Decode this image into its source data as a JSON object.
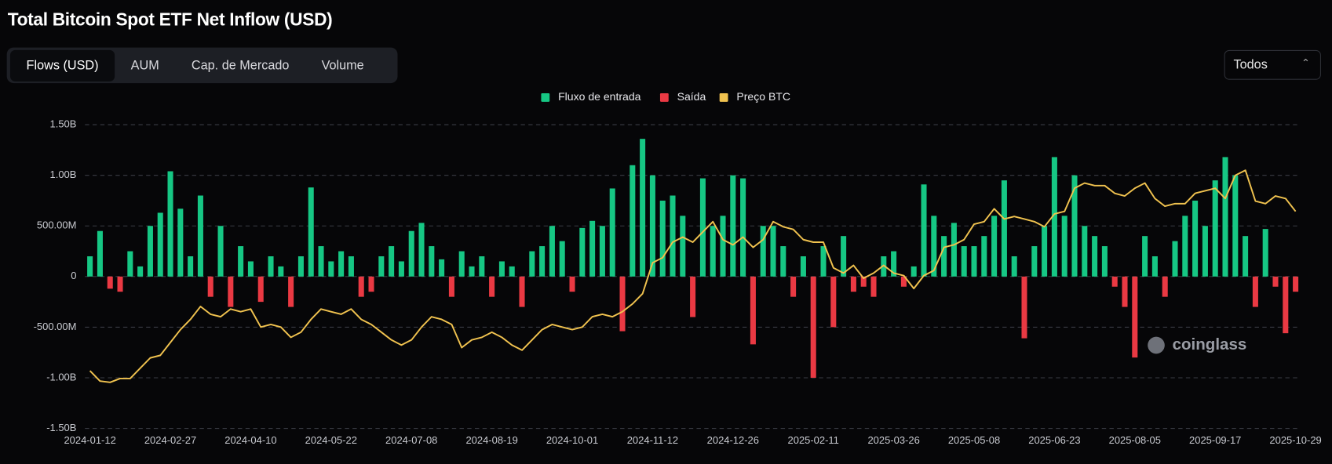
{
  "header": {
    "title": "Total Bitcoin Spot ETF Net Inflow (USD)"
  },
  "tabs": [
    "Flows (USD)",
    "AUM",
    "Cap. de Mercado",
    "Volume"
  ],
  "select": "Todos",
  "watermark": "coinglass",
  "chart_data": {
    "type": "bar",
    "grid": true,
    "legend": "top",
    "categories": [
      "2024-01-12",
      null,
      null,
      null,
      null,
      null,
      null,
      null,
      "2024-02-27",
      null,
      null,
      null,
      null,
      null,
      null,
      null,
      "2024-04-10",
      null,
      null,
      null,
      null,
      null,
      null,
      null,
      "2024-05-22",
      null,
      null,
      null,
      null,
      null,
      null,
      null,
      "2024-07-08",
      null,
      null,
      null,
      null,
      null,
      null,
      null,
      "2024-08-19",
      null,
      null,
      null,
      null,
      null,
      null,
      null,
      "2024-10-01",
      null,
      null,
      null,
      null,
      null,
      null,
      null,
      "2024-11-12",
      null,
      null,
      null,
      null,
      null,
      null,
      null,
      "2024-12-26",
      null,
      null,
      null,
      null,
      null,
      null,
      null,
      "2025-02-11",
      null,
      null,
      null,
      null,
      null,
      null,
      null,
      "2025-03-26",
      null,
      null,
      null,
      null,
      null,
      null,
      null,
      "2025-05-08",
      null,
      null,
      null,
      null,
      null,
      null,
      null,
      "2025-06-23",
      null,
      null,
      null,
      null,
      null,
      null,
      null,
      "2025-08-05",
      null,
      null,
      null,
      null,
      null,
      null,
      null,
      "2025-09-17",
      null,
      null,
      null,
      null,
      null,
      null,
      null,
      "2025-10-29"
    ],
    "ylim": [
      -1500000000.0,
      1500000000.0
    ],
    "yticks": [
      {
        "value": 1500000000.0,
        "label": "1.50B"
      },
      {
        "value": 1000000000.0,
        "label": "1.00B"
      },
      {
        "value": 500000000.0,
        "label": "500.00M"
      },
      0,
      {
        "value": -500000000.0,
        "label": "-500.00M"
      },
      {
        "value": -1000000000.0,
        "label": "-1.00B"
      },
      {
        "value": -1500000000.0,
        "label": "-1.50B"
      }
    ],
    "y2lim": [
      23600,
      141700
    ],
    "series": [
      {
        "name": "Fluxo de entrada",
        "color": "#16c784",
        "values": [
          200000000.0,
          450000000.0,
          null,
          null,
          250000000.0,
          100000000.0,
          500000000.0,
          630000000.0,
          1040000000.0,
          670000000.0,
          200000000.0,
          800000000.0,
          null,
          500000000.0,
          null,
          300000000.0,
          150000000.0,
          null,
          200000000.0,
          100000000.0,
          null,
          200000000.0,
          880000000.0,
          300000000.0,
          150000000.0,
          250000000.0,
          200000000.0,
          null,
          null,
          200000000.0,
          300000000.0,
          150000000.0,
          450000000.0,
          530000000.0,
          300000000.0,
          170000000.0,
          null,
          250000000.0,
          100000000.0,
          200000000.0,
          null,
          150000000.0,
          100000000.0,
          null,
          250000000.0,
          300000000.0,
          500000000.0,
          350000000.0,
          null,
          480000000.0,
          550000000.0,
          500000000.0,
          870000000.0,
          null,
          1100000000.0,
          1360000000.0,
          1000000000.0,
          750000000.0,
          800000000.0,
          600000000.0,
          null,
          970000000.0,
          500000000.0,
          600000000.0,
          1000000000.0,
          970000000.0,
          null,
          500000000.0,
          500000000.0,
          300000000.0,
          null,
          200000000.0,
          null,
          300000000.0,
          null,
          400000000.0,
          null,
          null,
          null,
          200000000.0,
          250000000.0,
          null,
          100000000.0,
          910000000.0,
          600000000.0,
          400000000.0,
          530000000.0,
          300000000.0,
          300000000.0,
          400000000.0,
          600000000.0,
          950000000.0,
          200000000.0,
          null,
          300000000.0,
          500000000.0,
          1180000000.0,
          600000000.0,
          1000000000.0,
          500000000.0,
          400000000.0,
          300000000.0,
          null,
          null,
          null,
          400000000.0,
          200000000.0,
          null,
          350000000.0,
          600000000.0,
          750000000.0,
          500000000.0,
          950000000.0,
          1180000000.0,
          1000000000.0,
          400000000.0,
          null,
          470000000.0,
          null,
          null,
          null
        ]
      },
      {
        "name": "Saída",
        "color": "#ea3943",
        "values": [
          null,
          null,
          -120000000.0,
          -150000000.0,
          null,
          null,
          null,
          null,
          null,
          null,
          null,
          null,
          -200000000.0,
          null,
          -300000000.0,
          null,
          null,
          -250000000.0,
          null,
          null,
          -300000000.0,
          null,
          null,
          null,
          null,
          null,
          null,
          -200000000.0,
          -150000000.0,
          null,
          null,
          null,
          null,
          null,
          null,
          null,
          -200000000.0,
          null,
          null,
          null,
          -200000000.0,
          null,
          null,
          -300000000.0,
          null,
          null,
          null,
          null,
          -150000000.0,
          null,
          null,
          null,
          null,
          -540000000.0,
          null,
          null,
          null,
          null,
          null,
          null,
          -400000000.0,
          null,
          null,
          null,
          null,
          null,
          -670000000.0,
          null,
          null,
          null,
          -200000000.0,
          null,
          -1000000000.0,
          null,
          -500000000.0,
          null,
          -150000000.0,
          -100000000.0,
          -200000000.0,
          null,
          null,
          -100000000.0,
          null,
          null,
          null,
          null,
          null,
          null,
          null,
          null,
          null,
          null,
          null,
          -610000000.0,
          null,
          null,
          null,
          null,
          null,
          null,
          null,
          null,
          -100000000.0,
          -300000000.0,
          -800000000.0,
          null,
          null,
          -200000000.0,
          null,
          null,
          null,
          null,
          null,
          null,
          null,
          null,
          -300000000.0,
          null,
          -100000000.0,
          -560000000.0,
          -150000000.0
        ]
      },
      {
        "name": "Preço BTC",
        "color": "#f0c24f",
        "type": "line",
        "axis": "y2",
        "values": [
          46000,
          42000,
          41500,
          43000,
          43000,
          47000,
          51000,
          52000,
          57000,
          62000,
          66000,
          71000,
          68000,
          67000,
          70000,
          69000,
          70000,
          63000,
          64000,
          63000,
          59000,
          61000,
          66000,
          70000,
          69000,
          68000,
          70000,
          66000,
          64000,
          61000,
          58000,
          56000,
          58000,
          63000,
          67000,
          66000,
          64000,
          55000,
          58000,
          59000,
          61000,
          59000,
          56000,
          54000,
          58000,
          62000,
          64000,
          63000,
          62000,
          63000,
          67000,
          68000,
          67000,
          69000,
          72000,
          76000,
          88000,
          90000,
          96000,
          98000,
          96000,
          100000,
          104000,
          97000,
          95000,
          98000,
          94000,
          97000,
          104000,
          102000,
          101000,
          97000,
          96000,
          96000,
          86000,
          84000,
          87000,
          82000,
          84000,
          87000,
          84000,
          83000,
          78000,
          83000,
          85000,
          94000,
          95000,
          97000,
          103000,
          104000,
          109000,
          105000,
          106000,
          105000,
          104000,
          102000,
          107000,
          108000,
          117000,
          119000,
          118000,
          118000,
          115000,
          114000,
          117000,
          119000,
          113000,
          110000,
          111000,
          111000,
          115000,
          116000,
          117000,
          113000,
          122000,
          124000,
          112000,
          111000,
          114000,
          113000,
          108000
        ]
      }
    ]
  }
}
